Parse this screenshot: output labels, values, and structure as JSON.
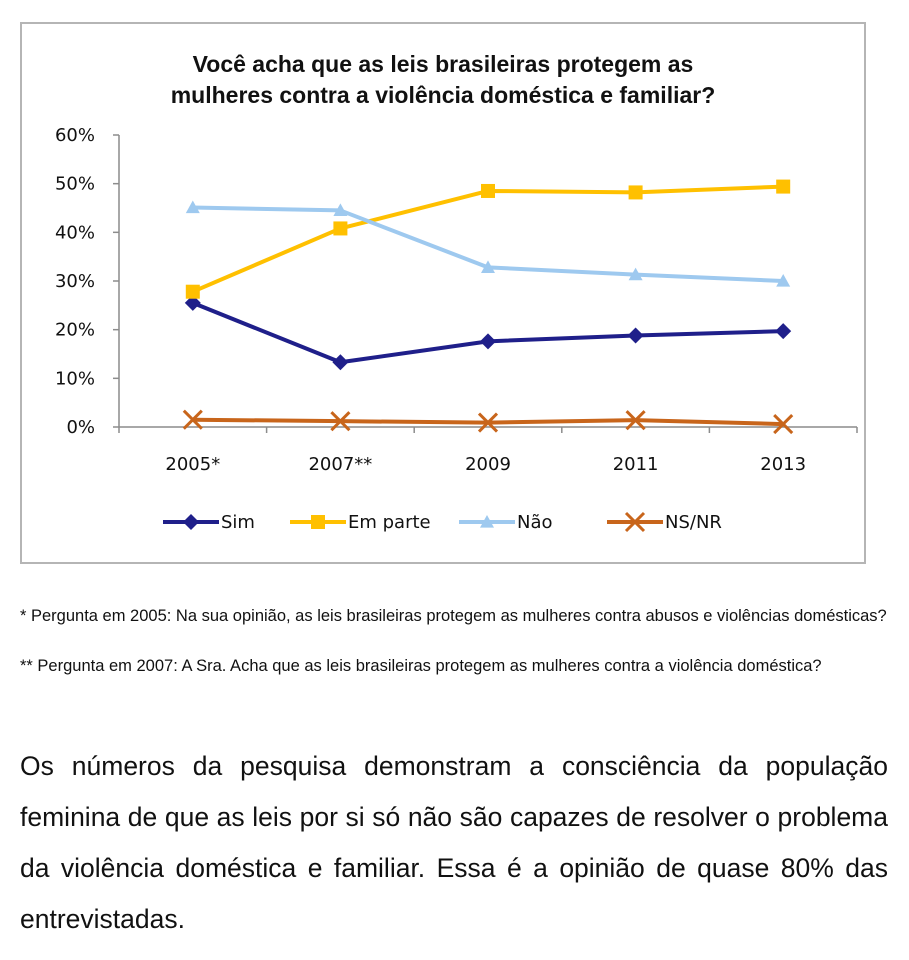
{
  "chart_data": {
    "type": "line",
    "title": "Você acha que as leis brasileiras protegem as mulheres contra a violência doméstica e familiar?",
    "title_lines": [
      "Você acha que as leis brasileiras protegem as",
      "mulheres contra a violência doméstica e familiar?"
    ],
    "categories": [
      "2005*",
      "2007**",
      "2009",
      "2011",
      "2013"
    ],
    "y_ticks": [
      "0%",
      "10%",
      "20%",
      "30%",
      "40%",
      "50%",
      "60%"
    ],
    "ylim": [
      0,
      60
    ],
    "y_unit": "%",
    "grid": false,
    "legend_position": "bottom",
    "series": [
      {
        "name": "Sim",
        "values": [
          25.5,
          13.3,
          17.6,
          18.8,
          19.7
        ],
        "color": "#1f1f8a",
        "marker": "diamond"
      },
      {
        "name": "Em parte",
        "values": [
          27.8,
          40.8,
          48.5,
          48.2,
          49.4
        ],
        "color": "#ffc000",
        "marker": "square"
      },
      {
        "name": "Não",
        "values": [
          45.1,
          44.5,
          32.8,
          31.3,
          30.0
        ],
        "color": "#9ec9ef",
        "marker": "triangle"
      },
      {
        "name": "NS/NR",
        "values": [
          1.5,
          1.2,
          0.9,
          1.4,
          0.6
        ],
        "color": "#c8651b",
        "marker": "x"
      }
    ]
  },
  "footnotes": [
    "* Pergunta em 2005: Na sua opinião, as leis brasileiras protegem as mulheres contra abusos e violências domésticas?",
    "** Pergunta em 2007: A Sra. Acha que as leis brasileiras protegem as mulheres contra a violência doméstica?"
  ],
  "body_text": "Os números da pesquisa demonstram a consciência da população feminina de que as leis por si só não são capazes de resolver o problema da violência doméstica e familiar. Essa é a opinião de quase 80% das entrevistadas."
}
